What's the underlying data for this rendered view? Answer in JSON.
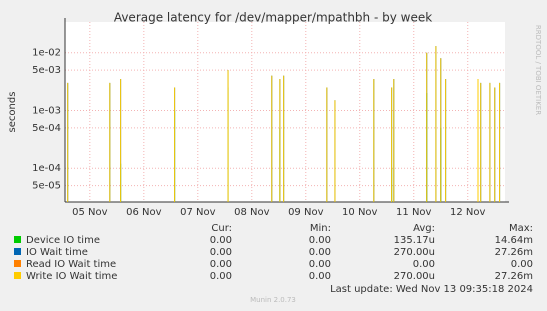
{
  "chart_data": {
    "type": "line",
    "title": "Average latency for /dev/mapper/mpathbh - by week",
    "ylabel": "seconds",
    "side_label": "RRDTOOL / TOBI OETIKER",
    "log_scale": true,
    "grid": true,
    "ylim": [
      2.6e-05,
      0.034
    ],
    "yticks": [
      {
        "value": 0.01,
        "label": "1e-02"
      },
      {
        "value": 0.005,
        "label": "5e-03"
      },
      {
        "value": 0.001,
        "label": "1e-03"
      },
      {
        "value": 0.0005,
        "label": "5e-04"
      },
      {
        "value": 0.0001,
        "label": "1e-04"
      },
      {
        "value": 5e-05,
        "label": "5e-05"
      }
    ],
    "xlim": [
      4.54,
      12.69
    ],
    "xticks": [
      {
        "value": 5,
        "label": "05 Nov"
      },
      {
        "value": 6,
        "label": "06 Nov"
      },
      {
        "value": 7,
        "label": "07 Nov"
      },
      {
        "value": 8,
        "label": "08 Nov"
      },
      {
        "value": 9,
        "label": "09 Nov"
      },
      {
        "value": 10,
        "label": "10 Nov"
      },
      {
        "value": 11,
        "label": "11 Nov"
      },
      {
        "value": 12,
        "label": "12 Nov"
      }
    ],
    "x": [
      4.59,
      5.37,
      5.57,
      6.57,
      7.56,
      8.37,
      8.52,
      8.59,
      9.39,
      9.54,
      10.26,
      10.59,
      10.63,
      11.24,
      11.41,
      11.5,
      11.59,
      12.19,
      12.24,
      12.41,
      12.5,
      12.59
    ],
    "columns": [
      "Cur:",
      "Min:",
      "Avg:",
      "Max:"
    ],
    "series": [
      {
        "name": "Device IO time",
        "color": "#00cc00",
        "stats": [
          "0.00",
          "0.00",
          "135.17u",
          "14.64m"
        ],
        "values": [
          null,
          null,
          0.00012,
          0.001,
          0.0025,
          null,
          0.0005,
          null,
          null,
          null,
          null,
          0.0001,
          null,
          0.002,
          null,
          0.0005,
          null,
          0.0018,
          null,
          null,
          null,
          null
        ]
      },
      {
        "name": "IO Wait time",
        "color": "#0066b3",
        "stats": [
          "0.00",
          "0.00",
          "270.00u",
          "27.26m"
        ],
        "values": [
          0.003,
          0.003,
          0.0035,
          0.0025,
          0.005,
          0.004,
          0.0035,
          0.004,
          0.0025,
          0.0015,
          0.0035,
          0.0025,
          0.0035,
          0.01,
          0.013,
          0.008,
          0.0035,
          0.0035,
          0.003,
          0.003,
          0.0025,
          0.003
        ]
      },
      {
        "name": "Read IO Wait time",
        "color": "#ff8000",
        "stats": [
          "0.00",
          "0.00",
          "0.00",
          "0.00"
        ],
        "values": [
          null,
          null,
          null,
          null,
          null,
          null,
          null,
          null,
          null,
          null,
          null,
          null,
          null,
          null,
          null,
          null,
          null,
          null,
          null,
          null,
          null,
          null
        ]
      },
      {
        "name": "Write IO Wait time",
        "color": "#ffcc00",
        "stats": [
          "0.00",
          "0.00",
          "270.00u",
          "27.26m"
        ],
        "values": [
          0.003,
          0.003,
          0.0035,
          0.0025,
          0.005,
          0.004,
          0.0035,
          0.004,
          0.0025,
          0.0015,
          0.0035,
          0.0025,
          0.0035,
          0.01,
          0.013,
          0.008,
          0.0035,
          0.0035,
          0.003,
          0.003,
          0.0025,
          0.003
        ]
      }
    ],
    "last_update": "Last update: Wed Nov 13 09:35:18 2024",
    "footer": "Munin 2.0.73"
  }
}
